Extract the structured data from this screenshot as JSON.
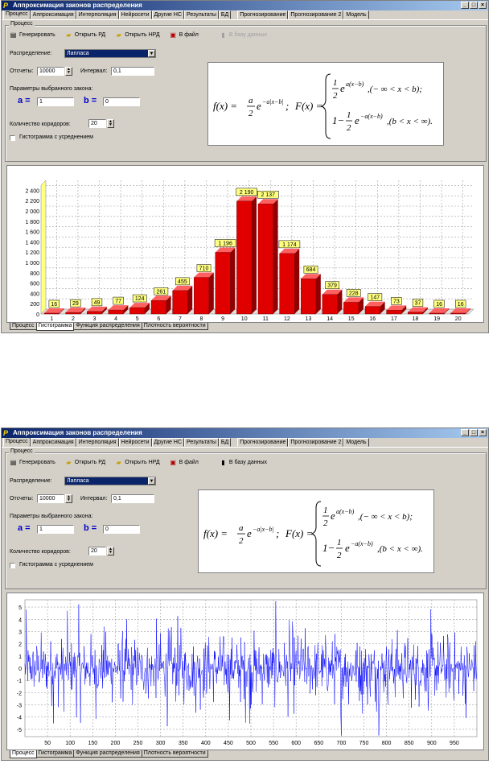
{
  "window1": {
    "title": "Аппроксимация законов распределения",
    "menu_tabs": [
      "Процесс",
      "Аппроксимация",
      "Интерполяция",
      "Нейросети",
      "Другие НС",
      "Результаты",
      "БД",
      "Прогнозирование",
      "Прогнозирование 2",
      "Модель"
    ],
    "group_label": "Процесс",
    "toolbar": {
      "generate": "Генерировать",
      "open_rd": "Открыть РД",
      "open_nrd": "Открыть НРД",
      "to_file": "В файл",
      "to_db": "В базу данных"
    },
    "distribution_label": "Распределение:",
    "distribution_value": "Лапласа",
    "samples_label": "Отсчеты:",
    "samples_value": "10000",
    "interval_label": "Интервал:",
    "interval_value": "0,1",
    "params_label": "Параметры выбранного закона:",
    "param_a_label": "a =",
    "param_a_value": "1",
    "param_b_label": "b =",
    "param_b_value": "0",
    "corridors_label": "Количество коридоров:",
    "corridors_value": "20",
    "histogram_checkbox_label": "Гистограмма с усреднением",
    "bottom_tabs": [
      "Процесс",
      "Гистограмма",
      "Функция распределения",
      "Плотность вероятности"
    ],
    "active_bottom_tab": 1
  },
  "window2": {
    "title": "Аппроксимация законов распределения",
    "menu_tabs": [
      "Процесс",
      "Аппроксимация",
      "Интерполяция",
      "Нейросети",
      "Другие НС",
      "Результаты",
      "БД",
      "Прогнозирование",
      "Прогнозирование 2",
      "Модель"
    ],
    "group_label": "Процесс",
    "toolbar": {
      "generate": "Генерировать",
      "open_rd": "Открыть РД",
      "open_nrd": "Открыть НРД",
      "to_file": "В файл",
      "to_db": "В базу данных"
    },
    "distribution_label": "Распределение:",
    "distribution_value": "Лапласа",
    "samples_label": "Отсчеты:",
    "samples_value": "10000",
    "interval_label": "Интервал:",
    "interval_value": "0,1",
    "params_label": "Параметры выбранного закона:",
    "param_a_label": "a =",
    "param_a_value": "1",
    "param_b_label": "b =",
    "param_b_value": "0",
    "corridors_label": "Количество коридоров:",
    "corridors_value": "20",
    "histogram_checkbox_label": "Гистограмма с усреднением",
    "bottom_tabs": [
      "Процесс",
      "Гистограмма",
      "Функция распределения",
      "Плотность вероятности"
    ],
    "active_bottom_tab": 0
  },
  "chart_data": [
    {
      "type": "bar",
      "categories": [
        "1",
        "2",
        "3",
        "4",
        "5",
        "6",
        "7",
        "8",
        "9",
        "10",
        "11",
        "12",
        "13",
        "14",
        "15",
        "16",
        "17",
        "18",
        "19",
        "20"
      ],
      "values": [
        16,
        29,
        49,
        77,
        124,
        261,
        455,
        710,
        1196,
        2190,
        2137,
        1174,
        684,
        379,
        228,
        147,
        73,
        37,
        16,
        16
      ],
      "data_labels": [
        "16",
        "29",
        "49",
        "77",
        "124",
        "261",
        "455",
        "710",
        "1 196",
        "2 190",
        "2 137",
        "1 174",
        "684",
        "379",
        "228",
        "147",
        "73",
        "37",
        "16",
        "16"
      ],
      "y_ticks": [
        "0",
        "200",
        "400",
        "600",
        "800",
        "1 000",
        "1 200",
        "1 400",
        "1 600",
        "1 800",
        "2 000",
        "2 200",
        "2 400"
      ],
      "ylim": [
        0,
        2500
      ],
      "grid": true,
      "bar_color": "#e00000",
      "label_bg": "#ffff80"
    },
    {
      "type": "line",
      "x_ticks": [
        "50",
        "100",
        "150",
        "200",
        "250",
        "300",
        "350",
        "400",
        "450",
        "500",
        "550",
        "600",
        "650",
        "700",
        "750",
        "800",
        "850",
        "900",
        "950"
      ],
      "y_ticks": [
        "5",
        "4",
        "3",
        "2",
        "1",
        "0",
        "-1",
        "-2",
        "-3",
        "-4",
        "-5"
      ],
      "xlim": [
        0,
        1000
      ],
      "ylim": [
        -5.6,
        5.6
      ],
      "grid": true,
      "line_color": "#0000ff"
    }
  ],
  "formula": {
    "f_lhs": "f(x) =",
    "f_num": "a",
    "f_den": "2",
    "f_exp": "−a|x−b|",
    "F_lhs": "F(x) =",
    "case1": "e^{a(x−b)}, (−∞ < x < b);",
    "case1_coef": "1/2",
    "case2": "1 − ½ e^{−a(x−b)}, (b < x < ∞)."
  }
}
